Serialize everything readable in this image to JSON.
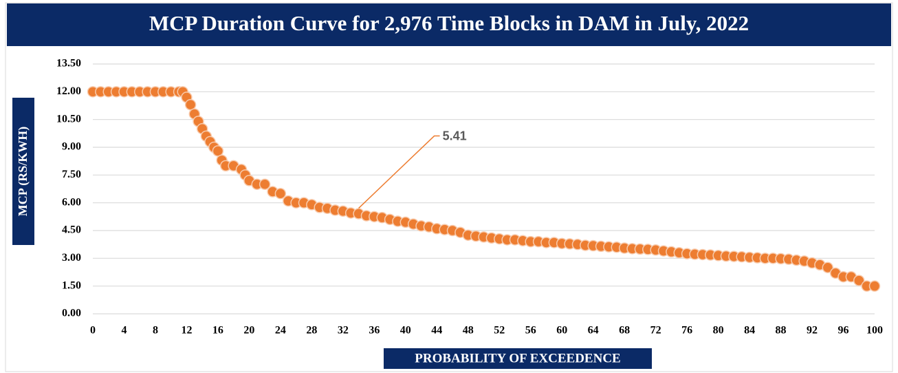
{
  "chart_data": {
    "type": "scatter",
    "title": "MCP Duration Curve for 2,976 Time Blocks in DAM in July, 2022",
    "x_label": "PROBABILITY OF EXCEEDENCE",
    "y_label": "MCP (RS/KWH)",
    "series": [
      {
        "color": "#ED7D31",
        "x": [
          0,
          1,
          2,
          3,
          4,
          5,
          6,
          7,
          8,
          9,
          10,
          11,
          11.5,
          12,
          12.5,
          13,
          13.5,
          14,
          14.5,
          15,
          15.5,
          16,
          16.5,
          17,
          18,
          19,
          19.5,
          20,
          21,
          22,
          23,
          24,
          25,
          26,
          27,
          28,
          29,
          30,
          31,
          32,
          33,
          34,
          35,
          36,
          37,
          38,
          39,
          40,
          41,
          42,
          43,
          44,
          45,
          46,
          47,
          48,
          49,
          50,
          51,
          52,
          53,
          54,
          55,
          56,
          57,
          58,
          59,
          60,
          61,
          62,
          63,
          64,
          65,
          66,
          67,
          68,
          69,
          70,
          71,
          72,
          73,
          74,
          75,
          76,
          77,
          78,
          79,
          80,
          81,
          82,
          83,
          84,
          85,
          86,
          87,
          88,
          89,
          90,
          91,
          92,
          93,
          94,
          95,
          96,
          97,
          98,
          99,
          100
        ],
        "values": [
          12,
          12,
          12,
          12,
          12,
          12,
          12,
          12,
          12,
          12,
          12,
          12,
          12,
          11.7,
          11.3,
          10.8,
          10.4,
          10,
          9.6,
          9.3,
          9,
          8.8,
          8.3,
          8,
          8,
          7.8,
          7.5,
          7.2,
          7,
          7,
          6.6,
          6.5,
          6.1,
          6,
          6,
          5.9,
          5.75,
          5.7,
          5.6,
          5.55,
          5.45,
          5.41,
          5.3,
          5.25,
          5.2,
          5.1,
          5,
          4.95,
          4.85,
          4.75,
          4.7,
          4.6,
          4.55,
          4.5,
          4.4,
          4.25,
          4.2,
          4.15,
          4.1,
          4.05,
          4,
          4,
          3.95,
          3.9,
          3.9,
          3.85,
          3.85,
          3.8,
          3.78,
          3.75,
          3.7,
          3.68,
          3.65,
          3.62,
          3.6,
          3.55,
          3.52,
          3.5,
          3.48,
          3.45,
          3.4,
          3.35,
          3.3,
          3.25,
          3.22,
          3.2,
          3.18,
          3.15,
          3.12,
          3.1,
          3.08,
          3.05,
          3.03,
          3,
          3,
          2.98,
          2.95,
          2.9,
          2.85,
          2.75,
          2.65,
          2.5,
          2.2,
          2,
          2,
          1.8,
          1.5,
          1.5
        ]
      }
    ],
    "annotation": {
      "label": "5.41",
      "x": 34,
      "value": 5.41
    },
    "xlim": [
      0,
      100
    ],
    "xticks": [
      0,
      4,
      8,
      12,
      16,
      20,
      24,
      28,
      32,
      36,
      40,
      44,
      48,
      52,
      56,
      60,
      64,
      68,
      72,
      76,
      80,
      84,
      88,
      92,
      96,
      100
    ],
    "ylim": [
      0,
      13.5
    ],
    "yticks": [
      {
        "value": 0,
        "label": "0.00"
      },
      {
        "value": 1.5,
        "label": "1.50"
      },
      {
        "value": 3,
        "label": "3.00"
      },
      {
        "value": 4.5,
        "label": "4.50"
      },
      {
        "value": 6,
        "label": "6.00"
      },
      {
        "value": 7.5,
        "label": "7.50"
      },
      {
        "value": 9,
        "label": "9.00"
      },
      {
        "value": 10.5,
        "label": "10.50"
      },
      {
        "value": 12,
        "label": "12.00"
      },
      {
        "value": 13.5,
        "label": "13.50"
      }
    ],
    "grid": true
  }
}
